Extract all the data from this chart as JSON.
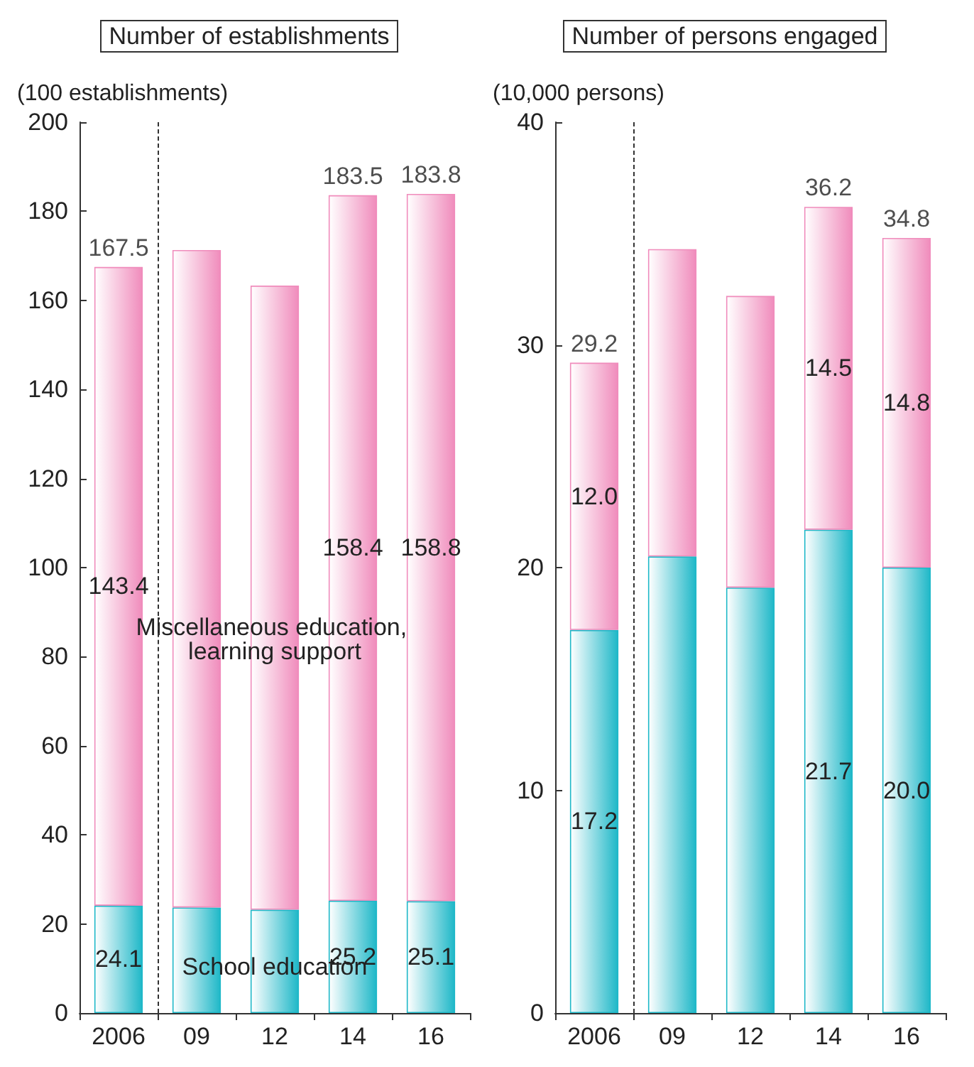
{
  "chart_data": [
    {
      "type": "bar",
      "title": "Number of establishments",
      "ylabel": "(100 establishments)",
      "categories": [
        "2006",
        "09",
        "12",
        "14",
        "16"
      ],
      "stacked": true,
      "legend": false,
      "grid": false,
      "ylim": [
        0,
        200
      ],
      "yticks": [
        0,
        20,
        40,
        60,
        80,
        100,
        120,
        140,
        160,
        180,
        200
      ],
      "series": [
        {
          "name": "School education",
          "color": "#1fb8c8",
          "values": [
            24.1,
            23.7,
            23.2,
            25.2,
            25.1
          ],
          "value_labels": [
            "24.1",
            null,
            null,
            "25.2",
            "25.1"
          ]
        },
        {
          "name": "Miscellaneous education, learning support",
          "color": "#f08cbc",
          "values": [
            143.4,
            147.6,
            140.1,
            158.4,
            158.8
          ],
          "value_labels": [
            "143.4",
            null,
            null,
            "158.4",
            "158.8"
          ]
        }
      ],
      "totals": [
        "167.5",
        null,
        null,
        "183.5",
        "183.8"
      ]
    },
    {
      "type": "bar",
      "title": "Number of persons engaged",
      "ylabel": "(10,000 persons)",
      "categories": [
        "2006",
        "09",
        "12",
        "14",
        "16"
      ],
      "stacked": true,
      "legend": false,
      "grid": false,
      "ylim": [
        0,
        40
      ],
      "yticks": [
        0,
        10,
        20,
        30,
        40
      ],
      "series": [
        {
          "color": "#1fb8c8",
          "values": [
            17.2,
            20.5,
            19.1,
            21.7,
            20.0
          ],
          "value_labels": [
            "17.2",
            null,
            null,
            "21.7",
            "20.0"
          ]
        },
        {
          "color": "#f08cbc",
          "values": [
            12.0,
            13.8,
            13.1,
            14.5,
            14.8
          ],
          "value_labels": [
            "12.0",
            null,
            null,
            "14.5",
            "14.8"
          ]
        }
      ],
      "totals": [
        "29.2",
        null,
        null,
        "36.2",
        "34.8"
      ]
    }
  ]
}
